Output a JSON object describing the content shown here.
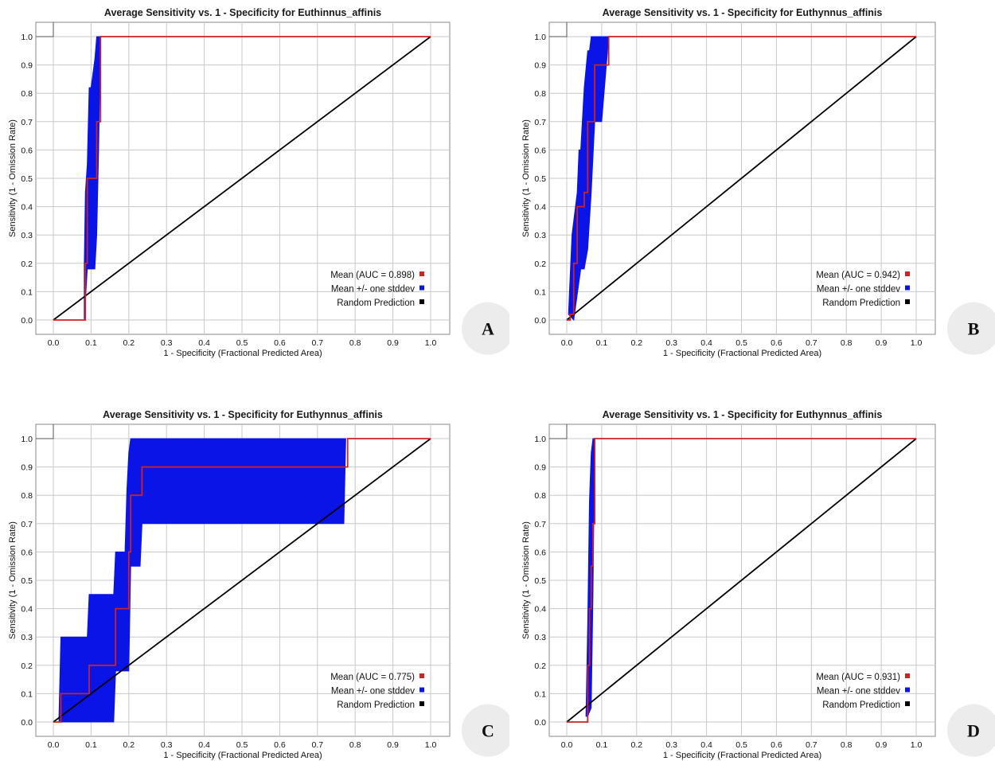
{
  "colors": {
    "mean_line": "#cc2222",
    "stddev_band": "#0a14e6",
    "random_line": "#000000",
    "grid": "#c8c8c8",
    "badge_bg": "#ececec"
  },
  "chart_data": [
    {
      "panel": "A",
      "type": "line",
      "title": "Average Sensitivity vs. 1 - Specificity for Euthinnus_affinis",
      "xlabel": "1 - Specificity (Fractional Predicted Area)",
      "ylabel": "Sensitivity (1 - Omission Rate)",
      "xlim": [
        0,
        1
      ],
      "ylim": [
        0,
        1
      ],
      "x_ticks": [
        "0.0",
        "0.1",
        "0.2",
        "0.3",
        "0.4",
        "0.5",
        "0.6",
        "0.7",
        "0.8",
        "0.9",
        "1.0"
      ],
      "y_ticks": [
        "0.0",
        "0.1",
        "0.2",
        "0.3",
        "0.4",
        "0.5",
        "0.6",
        "0.7",
        "0.8",
        "0.9",
        "1.0"
      ],
      "grid": true,
      "legend_position": "bottom-right",
      "series": [
        {
          "name": "Mean (AUC = 0.898)",
          "x": [
            0,
            0.08,
            0.085,
            0.09,
            0.1,
            0.11,
            0.115,
            0.12,
            0.125,
            1.0
          ],
          "y": [
            0,
            0,
            0.2,
            0.5,
            0.5,
            0.5,
            0.7,
            0.7,
            1.0,
            1.0
          ]
        },
        {
          "name": "Mean +/- one stddev",
          "upper": {
            "x": [
              0.082,
              0.085,
              0.09,
              0.095,
              0.1,
              0.11,
              0.115,
              0.12
            ],
            "y": [
              0.2,
              0.45,
              0.55,
              0.82,
              0.82,
              0.92,
              1.0,
              1.0
            ]
          },
          "lower": {
            "x": [
              0.082,
              0.09,
              0.11,
              0.115,
              0.12,
              0.125
            ],
            "y": [
              0.0,
              0.18,
              0.18,
              0.3,
              0.6,
              1.0
            ]
          }
        },
        {
          "name": "Random Prediction",
          "x": [
            0,
            1
          ],
          "y": [
            0,
            1
          ]
        }
      ]
    },
    {
      "panel": "B",
      "type": "line",
      "title": "Average Sensitivity vs. 1 - Specificity for Euthynnus_affinis",
      "xlabel": "1 - Specificity (Fractional Predicted Area)",
      "ylabel": "Sensitivity (1 - Omission Rate)",
      "xlim": [
        0,
        1
      ],
      "ylim": [
        0,
        1
      ],
      "x_ticks": [
        "0.0",
        "0.1",
        "0.2",
        "0.3",
        "0.4",
        "0.5",
        "0.6",
        "0.7",
        "0.8",
        "0.9",
        "1.0"
      ],
      "y_ticks": [
        "0.0",
        "0.1",
        "0.2",
        "0.3",
        "0.4",
        "0.5",
        "0.6",
        "0.7",
        "0.8",
        "0.9",
        "1.0"
      ],
      "grid": true,
      "legend_position": "bottom-right",
      "series": [
        {
          "name": "Mean (AUC = 0.942)",
          "x": [
            0,
            0.01,
            0.02,
            0.03,
            0.04,
            0.05,
            0.06,
            0.065,
            0.07,
            0.08,
            0.1,
            0.12,
            1.0
          ],
          "y": [
            0,
            0.02,
            0.2,
            0.4,
            0.4,
            0.45,
            0.7,
            0.7,
            0.7,
            0.9,
            0.9,
            1.0,
            1.0
          ]
        },
        {
          "name": "Mean +/- one stddev",
          "upper": {
            "x": [
              0.005,
              0.015,
              0.02,
              0.03,
              0.035,
              0.04,
              0.05,
              0.06,
              0.065,
              0.07,
              0.08,
              0.085
            ],
            "y": [
              0.02,
              0.3,
              0.35,
              0.45,
              0.6,
              0.6,
              0.82,
              0.95,
              0.95,
              1.0,
              1.0,
              1.0
            ]
          },
          "lower": {
            "x": [
              0.02,
              0.04,
              0.05,
              0.06,
              0.07,
              0.08,
              0.1,
              0.12
            ],
            "y": [
              0.0,
              0.18,
              0.18,
              0.25,
              0.45,
              0.7,
              0.7,
              1.0
            ]
          }
        },
        {
          "name": "Random Prediction",
          "x": [
            0,
            1
          ],
          "y": [
            0,
            1
          ]
        }
      ]
    },
    {
      "panel": "C",
      "type": "line",
      "title": "Average Sensitivity vs. 1 - Specificity for Euthynnus_affinis",
      "xlabel": "1 - Specificity (Fractional Predicted Area)",
      "ylabel": "Sensitivity (1 - Omission Rate)",
      "xlim": [
        0,
        1
      ],
      "ylim": [
        0,
        1
      ],
      "x_ticks": [
        "0.0",
        "0.1",
        "0.2",
        "0.3",
        "0.4",
        "0.5",
        "0.6",
        "0.7",
        "0.8",
        "0.9",
        "1.0"
      ],
      "y_ticks": [
        "0.0",
        "0.1",
        "0.2",
        "0.3",
        "0.4",
        "0.5",
        "0.6",
        "0.7",
        "0.8",
        "0.9",
        "1.0"
      ],
      "grid": true,
      "legend_position": "bottom-right",
      "series": [
        {
          "name": "Mean (AUC = 0.775)",
          "x": [
            0,
            0.015,
            0.02,
            0.09,
            0.095,
            0.16,
            0.165,
            0.19,
            0.2,
            0.205,
            0.22,
            0.235,
            0.76,
            0.78,
            1.0
          ],
          "y": [
            0,
            0,
            0.1,
            0.1,
            0.2,
            0.2,
            0.4,
            0.4,
            0.6,
            0.8,
            0.8,
            0.9,
            0.9,
            1.0,
            1.0
          ]
        },
        {
          "name": "Mean +/- one stddev",
          "upper": {
            "x": [
              0.015,
              0.02,
              0.09,
              0.095,
              0.16,
              0.165,
              0.19,
              0.195,
              0.2,
              0.205,
              0.775
            ],
            "y": [
              0.02,
              0.3,
              0.3,
              0.45,
              0.45,
              0.6,
              0.6,
              0.82,
              0.95,
              1.0,
              1.0
            ]
          },
          "lower": {
            "x": [
              0.015,
              0.16,
              0.165,
              0.2,
              0.205,
              0.23,
              0.235,
              0.77,
              0.775
            ],
            "y": [
              0.0,
              0.0,
              0.18,
              0.18,
              0.55,
              0.55,
              0.7,
              0.7,
              1.0
            ]
          }
        },
        {
          "name": "Random Prediction",
          "x": [
            0,
            1
          ],
          "y": [
            0,
            1
          ]
        }
      ]
    },
    {
      "panel": "D",
      "type": "line",
      "title": "Average Sensitivity vs. 1 - Specificity for Euthynnus_affinis",
      "xlabel": "1 - Specificity (Fractional Predicted Area)",
      "ylabel": "Sensitivity (1 - Omission Rate)",
      "xlim": [
        0,
        1
      ],
      "ylim": [
        0,
        1
      ],
      "x_ticks": [
        "0.0",
        "0.1",
        "0.2",
        "0.3",
        "0.4",
        "0.5",
        "0.6",
        "0.7",
        "0.8",
        "0.9",
        "1.0"
      ],
      "y_ticks": [
        "0.0",
        "0.1",
        "0.2",
        "0.3",
        "0.4",
        "0.5",
        "0.6",
        "0.7",
        "0.8",
        "0.9",
        "1.0"
      ],
      "grid": true,
      "legend_position": "bottom-right",
      "series": [
        {
          "name": "Mean (AUC = 0.931)",
          "x": [
            0,
            0.055,
            0.06,
            0.065,
            0.07,
            0.075,
            0.08,
            1.0
          ],
          "y": [
            0,
            0,
            0.2,
            0.4,
            0.55,
            0.7,
            1.0,
            1.0
          ]
        },
        {
          "name": "Mean +/- one stddev",
          "upper": {
            "x": [
              0.055,
              0.06,
              0.065,
              0.07,
              0.075
            ],
            "y": [
              0.02,
              0.35,
              0.78,
              0.95,
              1.0
            ]
          },
          "lower": {
            "x": [
              0.06,
              0.07,
              0.075,
              0.08
            ],
            "y": [
              0.02,
              0.05,
              0.45,
              1.0
            ]
          }
        },
        {
          "name": "Random Prediction",
          "x": [
            0,
            1
          ],
          "y": [
            0,
            1
          ]
        }
      ]
    }
  ]
}
